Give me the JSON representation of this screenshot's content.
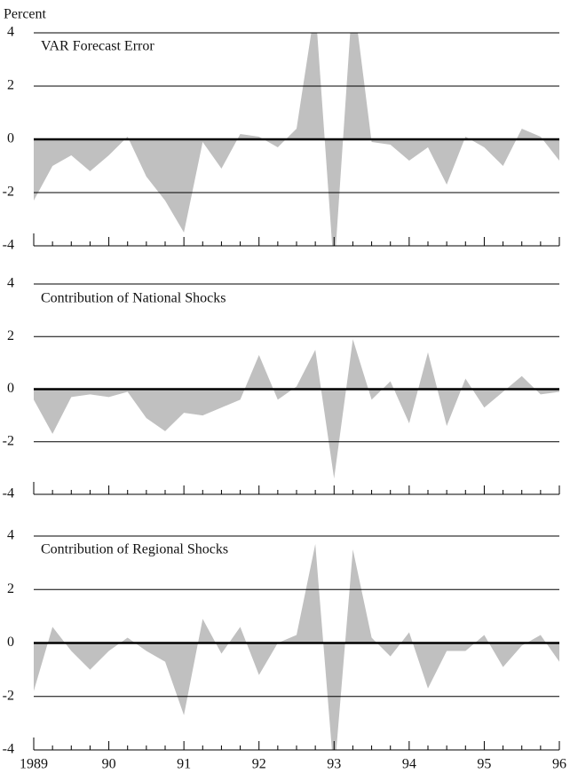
{
  "chart_data": [
    {
      "type": "area",
      "title": "VAR Forecast Error",
      "y_label": "Percent",
      "color": "#c0c0c0",
      "ylim": [
        -4,
        4
      ],
      "yticks": [
        -4,
        -2,
        0,
        2,
        4
      ],
      "values": [
        -2.3,
        -1.0,
        -0.6,
        -1.2,
        -0.6,
        0.1,
        -1.4,
        -2.3,
        -3.5,
        -0.1,
        -1.1,
        0.2,
        0.1,
        -0.3,
        0.4,
        5.0,
        -5.0,
        5.5,
        -0.1,
        -0.2,
        -0.8,
        -0.3,
        -1.7,
        0.1,
        -0.3,
        -1.0,
        0.4,
        0.1,
        -0.8
      ]
    },
    {
      "type": "area",
      "title": "Contribution of National Shocks",
      "color": "#c0c0c0",
      "ylim": [
        -4,
        4
      ],
      "yticks": [
        -4,
        -2,
        0,
        2,
        4
      ],
      "values": [
        -0.4,
        -1.7,
        -0.3,
        -0.2,
        -0.3,
        -0.1,
        -1.1,
        -1.6,
        -0.9,
        -1.0,
        -0.7,
        -0.4,
        1.3,
        -0.4,
        0.1,
        1.5,
        -3.4,
        1.9,
        -0.4,
        0.3,
        -1.3,
        1.4,
        -1.4,
        0.4,
        -0.7,
        -0.1,
        0.5,
        -0.2,
        -0.1
      ]
    },
    {
      "type": "area",
      "title": "Contribution of Regional Shocks",
      "color": "#c0c0c0",
      "ylim": [
        -4,
        4
      ],
      "yticks": [
        -4,
        -2,
        0,
        2,
        4
      ],
      "categories": [
        "1989",
        null,
        null,
        null,
        "90",
        null,
        null,
        null,
        "91",
        null,
        null,
        null,
        "92",
        null,
        null,
        null,
        "93",
        null,
        null,
        null,
        "94",
        null,
        null,
        null,
        "95",
        null,
        null,
        null,
        "96"
      ],
      "values": [
        -1.8,
        0.6,
        -0.3,
        -1.0,
        -0.3,
        0.2,
        -0.3,
        -0.7,
        -2.7,
        0.9,
        -0.4,
        0.6,
        -1.2,
        0.0,
        0.3,
        3.7,
        -5.0,
        3.5,
        0.2,
        -0.5,
        0.4,
        -1.7,
        -0.3,
        -0.3,
        0.3,
        -0.9,
        -0.1,
        0.3,
        -0.7
      ]
    }
  ]
}
